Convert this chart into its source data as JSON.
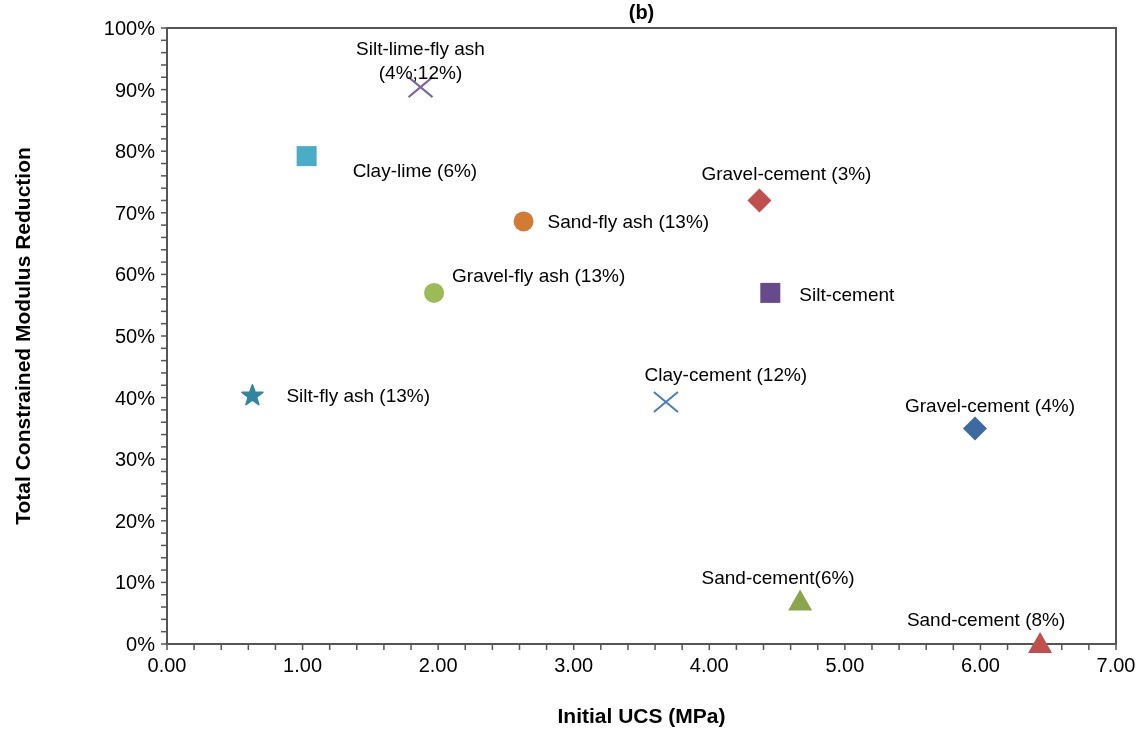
{
  "chart_data": {
    "type": "scatter",
    "title": "(b)",
    "xlabel": "Initial UCS (MPa)",
    "ylabel": "Total Constrained Modulus Reduction",
    "xlim": [
      0,
      7
    ],
    "ylim": [
      0,
      100
    ],
    "xticks": [
      {
        "value": 0,
        "label": "0.00"
      },
      {
        "value": 0.2,
        "label": null
      },
      {
        "value": 0.4,
        "label": null
      },
      {
        "value": 0.6,
        "label": null
      },
      {
        "value": 0.8,
        "label": null
      },
      {
        "value": 1,
        "label": "1.00"
      },
      {
        "value": 1.2,
        "label": null
      },
      {
        "value": 1.4,
        "label": null
      },
      {
        "value": 1.6,
        "label": null
      },
      {
        "value": 1.8,
        "label": null
      },
      {
        "value": 2,
        "label": "2.00"
      },
      {
        "value": 2.2,
        "label": null
      },
      {
        "value": 2.4,
        "label": null
      },
      {
        "value": 2.6,
        "label": null
      },
      {
        "value": 2.8,
        "label": null
      },
      {
        "value": 3,
        "label": "3.00"
      },
      {
        "value": 3.2,
        "label": null
      },
      {
        "value": 3.4,
        "label": null
      },
      {
        "value": 3.6,
        "label": null
      },
      {
        "value": 3.8,
        "label": null
      },
      {
        "value": 4,
        "label": "4.00"
      },
      {
        "value": 4.2,
        "label": null
      },
      {
        "value": 4.4,
        "label": null
      },
      {
        "value": 4.6,
        "label": null
      },
      {
        "value": 4.8,
        "label": null
      },
      {
        "value": 5,
        "label": "5.00"
      },
      {
        "value": 5.2,
        "label": null
      },
      {
        "value": 5.4,
        "label": null
      },
      {
        "value": 5.6,
        "label": null
      },
      {
        "value": 5.8,
        "label": null
      },
      {
        "value": 6,
        "label": "6.00"
      },
      {
        "value": 6.2,
        "label": null
      },
      {
        "value": 6.4,
        "label": null
      },
      {
        "value": 6.6,
        "label": null
      },
      {
        "value": 6.8,
        "label": null
      },
      {
        "value": 7,
        "label": "7.00"
      }
    ],
    "yticks": [
      {
        "value": 0,
        "label": "0%"
      },
      {
        "value": 2,
        "label": null
      },
      {
        "value": 4,
        "label": null
      },
      {
        "value": 6,
        "label": null
      },
      {
        "value": 8,
        "label": null
      },
      {
        "value": 10,
        "label": "10%"
      },
      {
        "value": 12,
        "label": null
      },
      {
        "value": 14,
        "label": null
      },
      {
        "value": 16,
        "label": null
      },
      {
        "value": 18,
        "label": null
      },
      {
        "value": 20,
        "label": "20%"
      },
      {
        "value": 22,
        "label": null
      },
      {
        "value": 24,
        "label": null
      },
      {
        "value": 26,
        "label": null
      },
      {
        "value": 28,
        "label": null
      },
      {
        "value": 30,
        "label": "30%"
      },
      {
        "value": 32,
        "label": null
      },
      {
        "value": 34,
        "label": null
      },
      {
        "value": 36,
        "label": null
      },
      {
        "value": 38,
        "label": null
      },
      {
        "value": 40,
        "label": "40%"
      },
      {
        "value": 42,
        "label": null
      },
      {
        "value": 44,
        "label": null
      },
      {
        "value": 46,
        "label": null
      },
      {
        "value": 48,
        "label": null
      },
      {
        "value": 50,
        "label": "50%"
      },
      {
        "value": 52,
        "label": null
      },
      {
        "value": 54,
        "label": null
      },
      {
        "value": 56,
        "label": null
      },
      {
        "value": 58,
        "label": null
      },
      {
        "value": 60,
        "label": "60%"
      },
      {
        "value": 62,
        "label": null
      },
      {
        "value": 64,
        "label": null
      },
      {
        "value": 66,
        "label": null
      },
      {
        "value": 68,
        "label": null
      },
      {
        "value": 70,
        "label": "70%"
      },
      {
        "value": 72,
        "label": null
      },
      {
        "value": 74,
        "label": null
      },
      {
        "value": 76,
        "label": null
      },
      {
        "value": 78,
        "label": null
      },
      {
        "value": 80,
        "label": "80%"
      },
      {
        "value": 82,
        "label": null
      },
      {
        "value": 84,
        "label": null
      },
      {
        "value": 86,
        "label": null
      },
      {
        "value": 88,
        "label": null
      },
      {
        "value": 90,
        "label": "90%"
      },
      {
        "value": 92,
        "label": null
      },
      {
        "value": 94,
        "label": null
      },
      {
        "value": 96,
        "label": null
      },
      {
        "value": 98,
        "label": null
      },
      {
        "value": 100,
        "label": "100%"
      }
    ],
    "grid": false,
    "series": [
      {
        "name": "Silt-lime-fly ash\n(4%;12%)",
        "color": "#8064a2",
        "marker": "cross",
        "x": [
          1.87
        ],
        "values": [
          90.4
        ]
      },
      {
        "name": "Clay-lime (6%)",
        "color": "#4bacc6",
        "marker": "square",
        "x": [
          1.03
        ],
        "values": [
          79.2
        ]
      },
      {
        "name": "Sand-fly ash (13%)",
        "color": "#d07c35",
        "marker": "circle",
        "x": [
          2.63
        ],
        "values": [
          68.6
        ]
      },
      {
        "name": "Gravel-cement (3%)",
        "color": "#c0504d",
        "marker": "diamond",
        "x": [
          4.37
        ],
        "values": [
          72
        ]
      },
      {
        "name": "Gravel-fly ash (13%)",
        "color": "#9bbb59",
        "marker": "circle",
        "x": [
          1.97
        ],
        "values": [
          57
        ]
      },
      {
        "name": "Silt-cement",
        "color": "#664a8a",
        "marker": "square",
        "x": [
          4.45
        ],
        "values": [
          57
        ]
      },
      {
        "name": "Silt-fly ash (13%)",
        "color": "#31859c",
        "marker": "star",
        "x": [
          0.63
        ],
        "values": [
          40.3
        ]
      },
      {
        "name": "Clay-cement (12%)",
        "color": "#4a7ebb",
        "marker": "cross",
        "x": [
          3.68
        ],
        "values": [
          39.3
        ]
      },
      {
        "name": "Gravel-cement (4%)",
        "color": "#3c6aa1",
        "marker": "diamond",
        "x": [
          5.96
        ],
        "values": [
          35
        ]
      },
      {
        "name": "Sand-cement(6%)",
        "color": "#8aa64a",
        "marker": "triangle",
        "x": [
          4.67
        ],
        "values": [
          6.9
        ]
      },
      {
        "name": "Sand-cement (8%)",
        "color": "#c0504d",
        "marker": "triangle",
        "x": [
          6.44
        ],
        "values": [
          0
        ]
      }
    ]
  }
}
